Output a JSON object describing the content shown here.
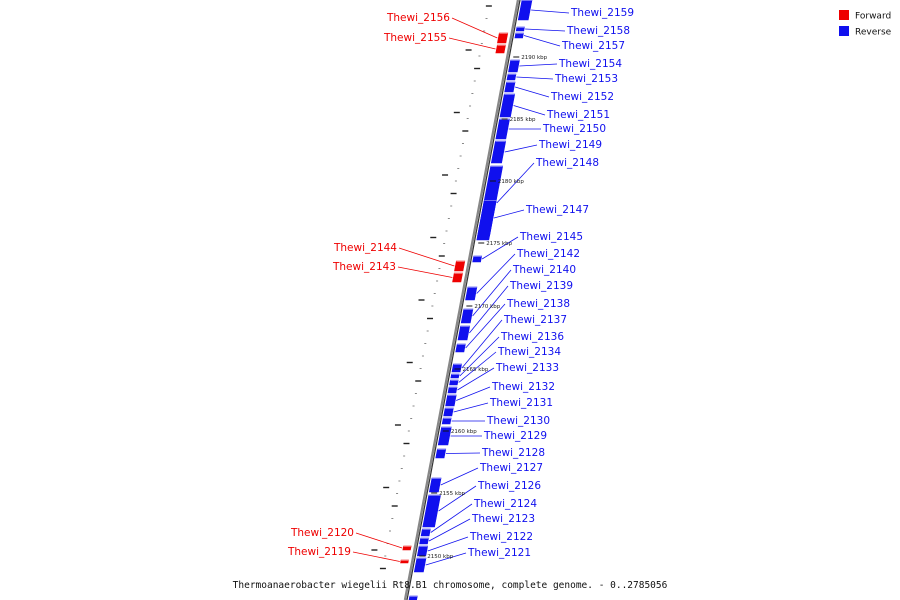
{
  "legend": [
    {
      "label": "Forward",
      "color": "#ee0000"
    },
    {
      "label": "Reverse",
      "color": "#1010ee"
    }
  ],
  "caption": "Thermoanaerobacter wiegelii Rt8.B1 chromosome, complete genome. - 0..2785056",
  "colors": {
    "axis": "#888888",
    "axis_shadow": "#333333"
  },
  "ticks": [
    {
      "label": "2190 kbp"
    },
    {
      "label": "2185 kbp"
    },
    {
      "label": "2180 kbp"
    },
    {
      "label": "2175 kbp"
    },
    {
      "label": "2170 kbp"
    },
    {
      "label": "2165 kbp"
    },
    {
      "label": "2160 kbp"
    },
    {
      "label": "2155 kbp"
    },
    {
      "label": "2150 kbp"
    }
  ],
  "genes": [
    {
      "name": "Thewi_2159",
      "strand": "reverse"
    },
    {
      "name": "Thewi_2158",
      "strand": "reverse"
    },
    {
      "name": "Thewi_2157",
      "strand": "reverse"
    },
    {
      "name": "Thewi_2156",
      "strand": "forward"
    },
    {
      "name": "Thewi_2155",
      "strand": "forward"
    },
    {
      "name": "Thewi_2154",
      "strand": "reverse"
    },
    {
      "name": "Thewi_2153",
      "strand": "reverse"
    },
    {
      "name": "Thewi_2152",
      "strand": "reverse"
    },
    {
      "name": "Thewi_2151",
      "strand": "reverse"
    },
    {
      "name": "Thewi_2150",
      "strand": "reverse"
    },
    {
      "name": "Thewi_2149",
      "strand": "reverse"
    },
    {
      "name": "Thewi_2148",
      "strand": "reverse"
    },
    {
      "name": "Thewi_2147",
      "strand": "reverse"
    },
    {
      "name": "Thewi_2145",
      "strand": "reverse"
    },
    {
      "name": "Thewi_2144",
      "strand": "forward"
    },
    {
      "name": "Thewi_2143",
      "strand": "forward"
    },
    {
      "name": "Thewi_2142",
      "strand": "reverse"
    },
    {
      "name": "Thewi_2140",
      "strand": "reverse"
    },
    {
      "name": "Thewi_2139",
      "strand": "reverse"
    },
    {
      "name": "Thewi_2138",
      "strand": "reverse"
    },
    {
      "name": "Thewi_2137",
      "strand": "reverse"
    },
    {
      "name": "Thewi_2136",
      "strand": "reverse"
    },
    {
      "name": "Thewi_2134",
      "strand": "reverse"
    },
    {
      "name": "Thewi_2133",
      "strand": "reverse"
    },
    {
      "name": "Thewi_2132",
      "strand": "reverse"
    },
    {
      "name": "Thewi_2131",
      "strand": "reverse"
    },
    {
      "name": "Thewi_2130",
      "strand": "reverse"
    },
    {
      "name": "Thewi_2129",
      "strand": "reverse"
    },
    {
      "name": "Thewi_2128",
      "strand": "reverse"
    },
    {
      "name": "Thewi_2127",
      "strand": "reverse"
    },
    {
      "name": "Thewi_2126",
      "strand": "reverse"
    },
    {
      "name": "Thewi_2124",
      "strand": "reverse"
    },
    {
      "name": "Thewi_2123",
      "strand": "reverse"
    },
    {
      "name": "Thewi_2122",
      "strand": "reverse"
    },
    {
      "name": "Thewi_2121",
      "strand": "reverse"
    },
    {
      "name": "Thewi_2120",
      "strand": "forward"
    },
    {
      "name": "Thewi_2119",
      "strand": "forward"
    }
  ]
}
